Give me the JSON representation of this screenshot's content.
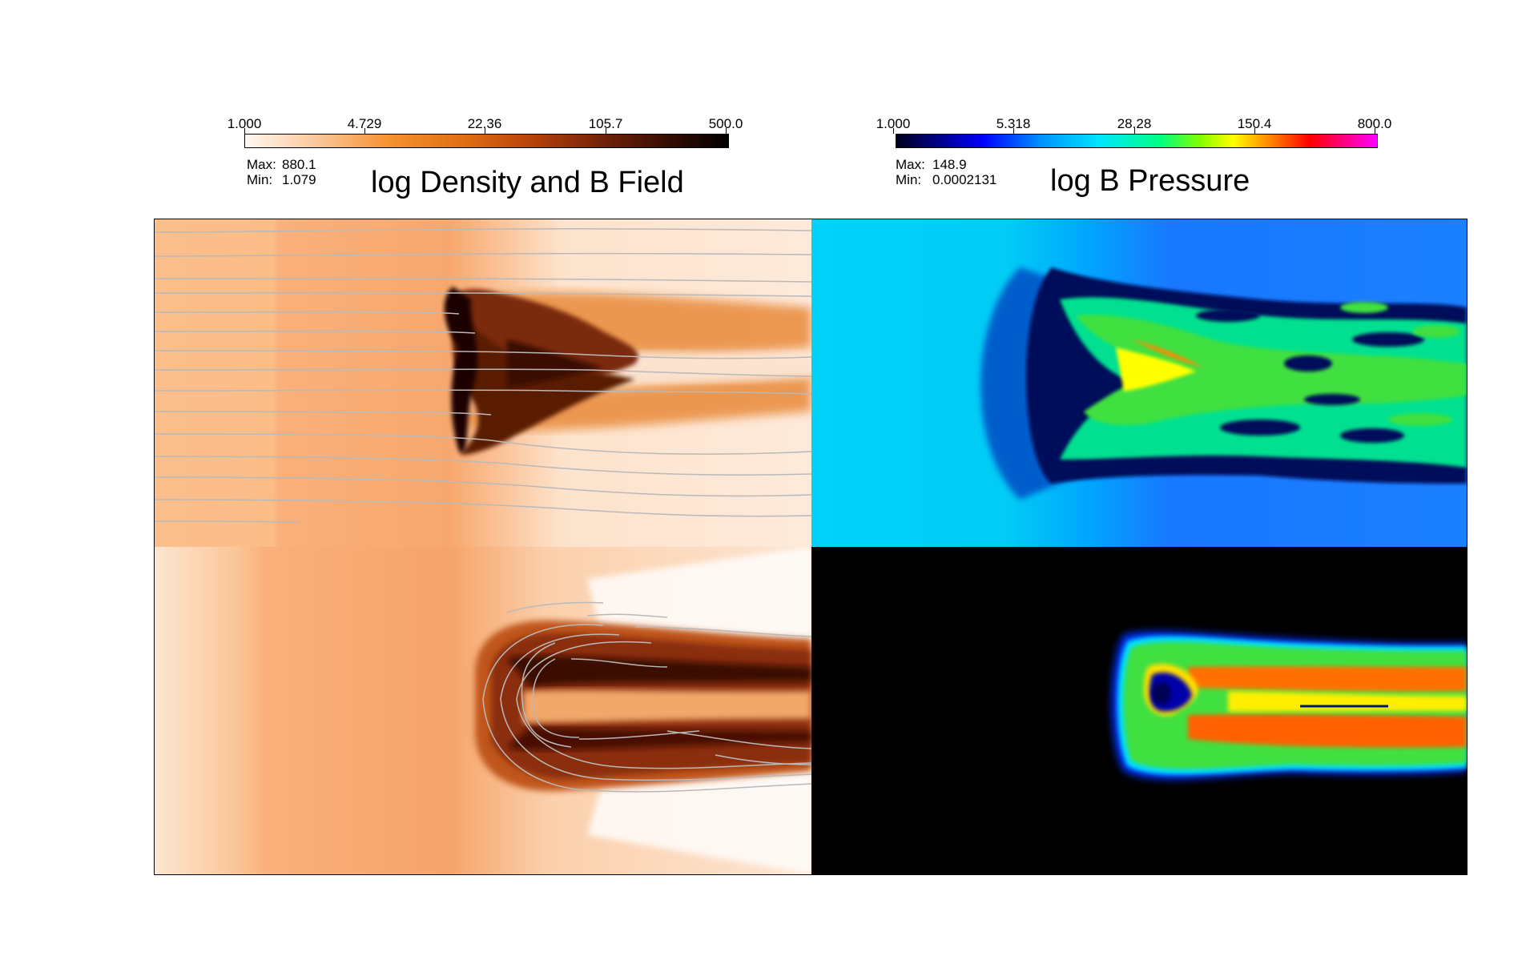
{
  "left_colorbar": {
    "ticks": [
      "1.000",
      "4.729",
      "22.36",
      "105.7",
      "500.0"
    ],
    "max_label": "Max:",
    "max_value": "880.1",
    "min_label": "Min:",
    "min_value": "1.079",
    "colors": [
      "#fff6ee",
      "#f9a767",
      "#e57b1a",
      "#8f2b0b",
      "#000000"
    ]
  },
  "left_title": "log Density and B Field",
  "right_colorbar": {
    "ticks": [
      "1.000",
      "5.318",
      "28.28",
      "150.4",
      "800.0"
    ],
    "max_label": "Max:",
    "max_value": "148.9",
    "min_label": "Min:",
    "min_value": "0.0002131",
    "colors": [
      "#000000",
      "#0000ff",
      "#00e5ff",
      "#00ff66",
      "#ffff00",
      "#ff0000",
      "#ff00ff"
    ]
  },
  "right_title": "log B Pressure"
}
